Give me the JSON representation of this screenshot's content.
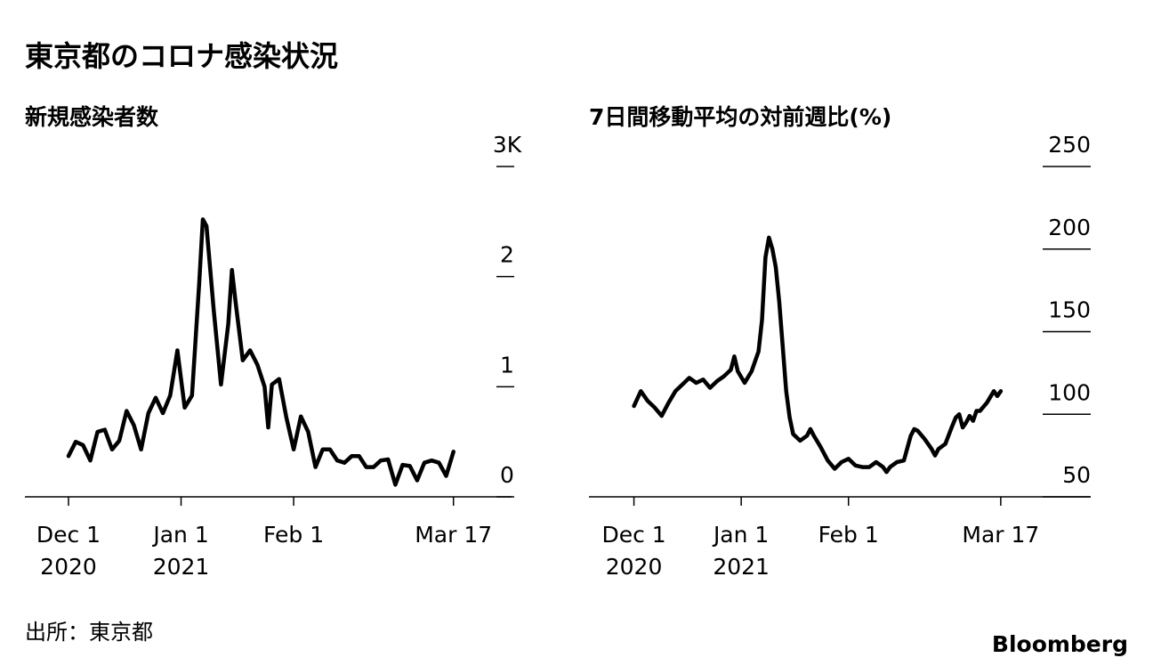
{
  "title": "東京都のコロナ感染状況",
  "source": "出所：東京都",
  "brand": "Bloomberg",
  "chart_data": [
    {
      "type": "line",
      "title": "新規感染者数",
      "color": "#000000",
      "x": [
        "2020-12-01",
        "2020-12-03",
        "2020-12-05",
        "2020-12-07",
        "2020-12-09",
        "2020-12-11",
        "2020-12-13",
        "2020-12-15",
        "2020-12-17",
        "2020-12-19",
        "2020-12-21",
        "2020-12-23",
        "2020-12-25",
        "2020-12-27",
        "2020-12-29",
        "2020-12-31",
        "2021-01-02",
        "2021-01-04",
        "2021-01-06",
        "2021-01-07",
        "2021-01-08",
        "2021-01-10",
        "2021-01-12",
        "2021-01-14",
        "2021-01-15",
        "2021-01-16",
        "2021-01-18",
        "2021-01-20",
        "2021-01-22",
        "2021-01-24",
        "2021-01-25",
        "2021-01-26",
        "2021-01-28",
        "2021-01-30",
        "2021-02-01",
        "2021-02-03",
        "2021-02-05",
        "2021-02-07",
        "2021-02-09",
        "2021-02-11",
        "2021-02-13",
        "2021-02-15",
        "2021-02-17",
        "2021-02-19",
        "2021-02-21",
        "2021-02-23",
        "2021-02-25",
        "2021-02-27",
        "2021-03-01",
        "2021-03-03",
        "2021-03-05",
        "2021-03-07",
        "2021-03-09",
        "2021-03-11",
        "2021-03-13",
        "2021-03-15",
        "2021-03-17"
      ],
      "values": [
        370,
        500,
        470,
        330,
        590,
        610,
        430,
        510,
        780,
        650,
        430,
        760,
        900,
        760,
        920,
        1330,
        810,
        920,
        1940,
        2520,
        2460,
        1690,
        1020,
        1570,
        2060,
        1770,
        1240,
        1330,
        1200,
        1000,
        630,
        1020,
        1070,
        720,
        430,
        730,
        590,
        270,
        430,
        430,
        330,
        310,
        370,
        370,
        270,
        270,
        330,
        340,
        110,
        290,
        280,
        150,
        310,
        330,
        310,
        190,
        410
      ],
      "xlim": [
        "2020-11-19",
        "2021-04-02"
      ],
      "xticks": [
        {
          "value": "2020-12-01",
          "label": "Dec 1",
          "year": "2020"
        },
        {
          "value": "2021-01-01",
          "label": "Jan 1",
          "year": "2021"
        },
        {
          "value": "2021-02-01",
          "label": "Feb 1"
        },
        {
          "value": "2021-03-17",
          "label": "Mar 17"
        }
      ],
      "ylim": [
        0,
        3000
      ],
      "yticks": [
        0,
        {
          "value": 1000,
          "label": "1"
        },
        {
          "value": 2000,
          "label": "2"
        },
        {
          "value": 3000,
          "label": "3K"
        }
      ]
    },
    {
      "type": "line",
      "title": "7日間移動平均の対前週比(%)",
      "color": "#000000",
      "x": [
        "2020-12-01",
        "2020-12-03",
        "2020-12-05",
        "2020-12-07",
        "2020-12-09",
        "2020-12-11",
        "2020-12-13",
        "2020-12-15",
        "2020-12-17",
        "2020-12-19",
        "2020-12-21",
        "2020-12-23",
        "2020-12-25",
        "2020-12-27",
        "2020-12-29",
        "2020-12-30",
        "2020-12-31",
        "2021-01-02",
        "2021-01-04",
        "2021-01-06",
        "2021-01-07",
        "2021-01-08",
        "2021-01-09",
        "2021-01-10",
        "2021-01-11",
        "2021-01-12",
        "2021-01-13",
        "2021-01-14",
        "2021-01-15",
        "2021-01-16",
        "2021-01-18",
        "2021-01-20",
        "2021-01-21",
        "2021-01-22",
        "2021-01-24",
        "2021-01-26",
        "2021-01-28",
        "2021-01-30",
        "2021-02-01",
        "2021-02-03",
        "2021-02-05",
        "2021-02-07",
        "2021-02-09",
        "2021-02-11",
        "2021-02-12",
        "2021-02-13",
        "2021-02-15",
        "2021-02-17",
        "2021-02-19",
        "2021-02-20",
        "2021-02-21",
        "2021-02-23",
        "2021-02-25",
        "2021-02-26",
        "2021-02-27",
        "2021-03-01",
        "2021-03-03",
        "2021-03-04",
        "2021-03-05",
        "2021-03-06",
        "2021-03-07",
        "2021-03-08",
        "2021-03-09",
        "2021-03-10",
        "2021-03-11",
        "2021-03-13",
        "2021-03-15",
        "2021-03-16",
        "2021-03-17"
      ],
      "values": [
        105,
        114,
        108,
        104,
        99,
        107,
        114,
        118,
        122,
        119,
        121,
        116,
        120,
        123,
        127,
        135,
        126,
        119,
        126,
        138,
        157,
        195,
        207,
        200,
        189,
        168,
        141,
        114,
        98,
        88,
        84,
        87,
        91,
        87,
        80,
        72,
        67,
        71,
        73,
        69,
        68,
        68,
        71,
        68,
        65,
        68,
        71,
        72,
        87,
        91,
        90,
        85,
        79,
        75,
        79,
        82,
        93,
        98,
        100,
        92,
        95,
        99,
        96,
        102,
        102,
        107,
        114,
        111,
        114
      ],
      "xlim": [
        "2020-11-18",
        "2021-04-12"
      ],
      "xticks": [
        {
          "value": "2020-12-01",
          "label": "Dec 1",
          "year": "2020"
        },
        {
          "value": "2021-01-01",
          "label": "Jan 1",
          "year": "2021"
        },
        {
          "value": "2021-02-01",
          "label": "Feb 1"
        },
        {
          "value": "2021-03-17",
          "label": "Mar 17"
        }
      ],
      "ylim": [
        50,
        250
      ],
      "yticks": [
        50,
        100,
        150,
        200,
        250
      ]
    }
  ]
}
